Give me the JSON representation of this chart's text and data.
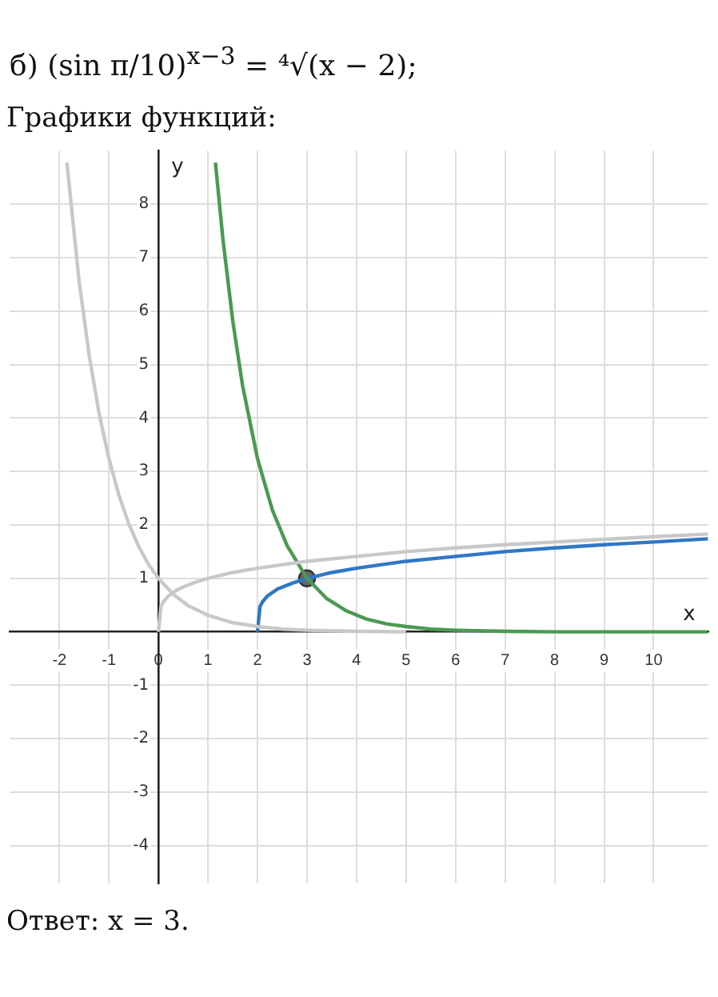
{
  "chart_data": {
    "type": "line",
    "title": "б) (sin π/10)$^{x−3}$ = ⁴√(x − 2);",
    "subtitle": "Графики функций:",
    "xlabel": "x",
    "ylabel": "y",
    "annotations": [
      "Ответ: x = 3."
    ],
    "xlim": [
      -3,
      11.1
    ],
    "ylim": [
      -4.7,
      9
    ],
    "xticks": [
      -2,
      -1,
      0,
      1,
      2,
      3,
      4,
      5,
      6,
      7,
      8,
      9,
      10
    ],
    "yticks": [
      -4,
      -3,
      -2,
      -1,
      1,
      2,
      3,
      4,
      5,
      6,
      7,
      8
    ],
    "grid": true,
    "legend": false,
    "series": [
      {
        "color": "#c8c8c8",
        "x": [
          -1.85,
          -1.6,
          -1.4,
          -1.2,
          -1,
          -0.8,
          -0.6,
          -0.4,
          -0.2,
          0,
          0.3,
          0.6,
          1,
          1.5,
          2,
          2.5,
          3,
          4,
          5
        ],
        "values": [
          8.78,
          6.54,
          5.18,
          4.09,
          3.24,
          2.56,
          2.02,
          1.6,
          1.26,
          1,
          0.7,
          0.49,
          0.31,
          0.17,
          0.1,
          0.05,
          0.03,
          0.01,
          0
        ]
      },
      {
        "color": "#c8c8c8",
        "x": [
          0,
          0.05,
          0.1,
          0.2,
          0.35,
          0.5,
          0.75,
          1,
          1.5,
          2,
          3,
          4,
          5,
          6,
          7,
          8,
          9,
          10,
          11.1
        ],
        "values": [
          0,
          0.47,
          0.56,
          0.67,
          0.77,
          0.84,
          0.93,
          1,
          1.11,
          1.19,
          1.32,
          1.41,
          1.5,
          1.57,
          1.63,
          1.68,
          1.73,
          1.78,
          1.83
        ]
      },
      {
        "color": "#4a9a52",
        "x": [
          1.15,
          1.3,
          1.5,
          1.7,
          2,
          2.3,
          2.6,
          3,
          3.4,
          3.8,
          4.2,
          4.6,
          5,
          5.5,
          6,
          7,
          8,
          9,
          10,
          11.1
        ],
        "values": [
          8.78,
          7.36,
          5.82,
          4.6,
          3.24,
          2.28,
          1.61,
          1,
          0.62,
          0.39,
          0.24,
          0.15,
          0.1,
          0.05,
          0.03,
          0.01,
          0,
          0,
          0,
          0
        ]
      },
      {
        "color": "#2f78c4",
        "x": [
          2,
          2.05,
          2.1,
          2.2,
          2.4,
          2.7,
          3,
          3.5,
          4,
          5,
          6,
          7,
          8,
          9,
          10,
          11.1
        ],
        "values": [
          0,
          0.47,
          0.56,
          0.67,
          0.8,
          0.91,
          1,
          1.11,
          1.19,
          1.32,
          1.41,
          1.5,
          1.57,
          1.63,
          1.68,
          1.74
        ]
      },
      {
        "type": "scatter",
        "color": "#666666",
        "x": [
          3
        ],
        "values": [
          1
        ]
      }
    ]
  }
}
